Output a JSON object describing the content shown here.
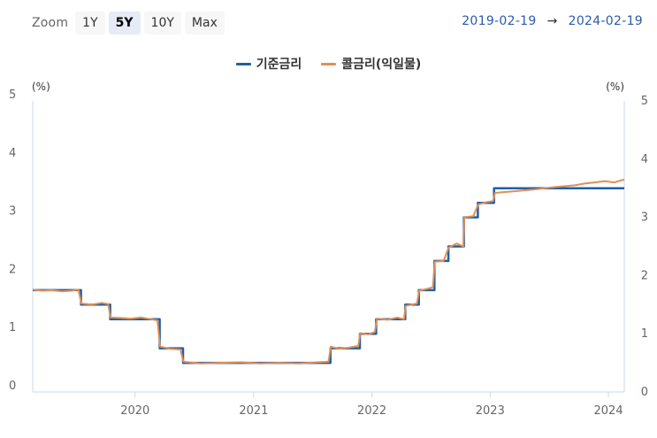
{
  "zoom": {
    "label": "Zoom",
    "buttons": [
      "1Y",
      "5Y",
      "10Y",
      "Max"
    ],
    "active": "5Y"
  },
  "range": {
    "from": "2019-02-19",
    "arrow": "→",
    "to": "2024-02-19"
  },
  "chart_data": {
    "type": "line",
    "y_unit": "(%)",
    "ylim": [
      0,
      5
    ],
    "y_ticks": [
      0,
      1,
      2,
      3,
      4,
      5
    ],
    "xlim": [
      "2019-02-19",
      "2024-02-19"
    ],
    "x_ticks": [
      "2020",
      "2021",
      "2022",
      "2023",
      "2024"
    ],
    "legend_position": "top-center",
    "grid": false,
    "series": [
      {
        "name": "기준금리",
        "color": "#1f5fa6",
        "style": "step",
        "points": [
          [
            "2019-02-19",
            1.75
          ],
          [
            "2019-07-18",
            1.5
          ],
          [
            "2019-10-16",
            1.25
          ],
          [
            "2020-03-17",
            0.75
          ],
          [
            "2020-05-28",
            0.5
          ],
          [
            "2021-08-26",
            0.75
          ],
          [
            "2021-11-25",
            1.0
          ],
          [
            "2022-01-14",
            1.25
          ],
          [
            "2022-04-14",
            1.5
          ],
          [
            "2022-05-26",
            1.75
          ],
          [
            "2022-07-13",
            2.25
          ],
          [
            "2022-08-25",
            2.5
          ],
          [
            "2022-10-12",
            3.0
          ],
          [
            "2022-11-24",
            3.25
          ],
          [
            "2023-01-13",
            3.5
          ],
          [
            "2024-02-19",
            3.5
          ]
        ]
      },
      {
        "name": "콜금리(익일물)",
        "color": "#e08f55",
        "style": "line",
        "points": [
          [
            "2019-02-19",
            1.76
          ],
          [
            "2019-03-20",
            1.74
          ],
          [
            "2019-04-18",
            1.75
          ],
          [
            "2019-05-20",
            1.73
          ],
          [
            "2019-06-20",
            1.74
          ],
          [
            "2019-07-10",
            1.76
          ],
          [
            "2019-07-19",
            1.52
          ],
          [
            "2019-08-20",
            1.5
          ],
          [
            "2019-09-20",
            1.53
          ],
          [
            "2019-10-10",
            1.51
          ],
          [
            "2019-10-17",
            1.28
          ],
          [
            "2019-11-20",
            1.27
          ],
          [
            "2019-12-18",
            1.26
          ],
          [
            "2020-01-20",
            1.28
          ],
          [
            "2020-02-20",
            1.25
          ],
          [
            "2020-03-10",
            1.23
          ],
          [
            "2020-03-18",
            0.78
          ],
          [
            "2020-04-20",
            0.74
          ],
          [
            "2020-05-20",
            0.73
          ],
          [
            "2020-05-29",
            0.52
          ],
          [
            "2020-07-20",
            0.49
          ],
          [
            "2020-09-20",
            0.5
          ],
          [
            "2020-11-20",
            0.51
          ],
          [
            "2021-01-20",
            0.49
          ],
          [
            "2021-03-20",
            0.5
          ],
          [
            "2021-05-20",
            0.49
          ],
          [
            "2021-07-20",
            0.51
          ],
          [
            "2021-08-20",
            0.52
          ],
          [
            "2021-08-27",
            0.78
          ],
          [
            "2021-09-20",
            0.74
          ],
          [
            "2021-10-20",
            0.76
          ],
          [
            "2021-11-20",
            0.79
          ],
          [
            "2021-11-26",
            1.01
          ],
          [
            "2021-12-20",
            0.99
          ],
          [
            "2022-01-10",
            1.03
          ],
          [
            "2022-01-17",
            1.26
          ],
          [
            "2022-02-20",
            1.24
          ],
          [
            "2022-03-20",
            1.28
          ],
          [
            "2022-04-10",
            1.25
          ],
          [
            "2022-04-15",
            1.48
          ],
          [
            "2022-05-20",
            1.52
          ],
          [
            "2022-05-27",
            1.74
          ],
          [
            "2022-06-20",
            1.77
          ],
          [
            "2022-07-08",
            1.8
          ],
          [
            "2022-07-14",
            2.24
          ],
          [
            "2022-08-10",
            2.25
          ],
          [
            "2022-08-26",
            2.48
          ],
          [
            "2022-09-20",
            2.55
          ],
          [
            "2022-10-10",
            2.5
          ],
          [
            "2022-10-13",
            3.0
          ],
          [
            "2022-11-10",
            3.02
          ],
          [
            "2022-11-25",
            3.22
          ],
          [
            "2022-12-20",
            3.26
          ],
          [
            "2023-01-10",
            3.28
          ],
          [
            "2023-01-16",
            3.42
          ],
          [
            "2023-03-20",
            3.45
          ],
          [
            "2023-05-20",
            3.48
          ],
          [
            "2023-07-20",
            3.52
          ],
          [
            "2023-09-20",
            3.55
          ],
          [
            "2023-10-20",
            3.58
          ],
          [
            "2023-11-20",
            3.6
          ],
          [
            "2023-12-20",
            3.62
          ],
          [
            "2024-01-20",
            3.6
          ],
          [
            "2024-02-19",
            3.65
          ]
        ]
      }
    ]
  }
}
